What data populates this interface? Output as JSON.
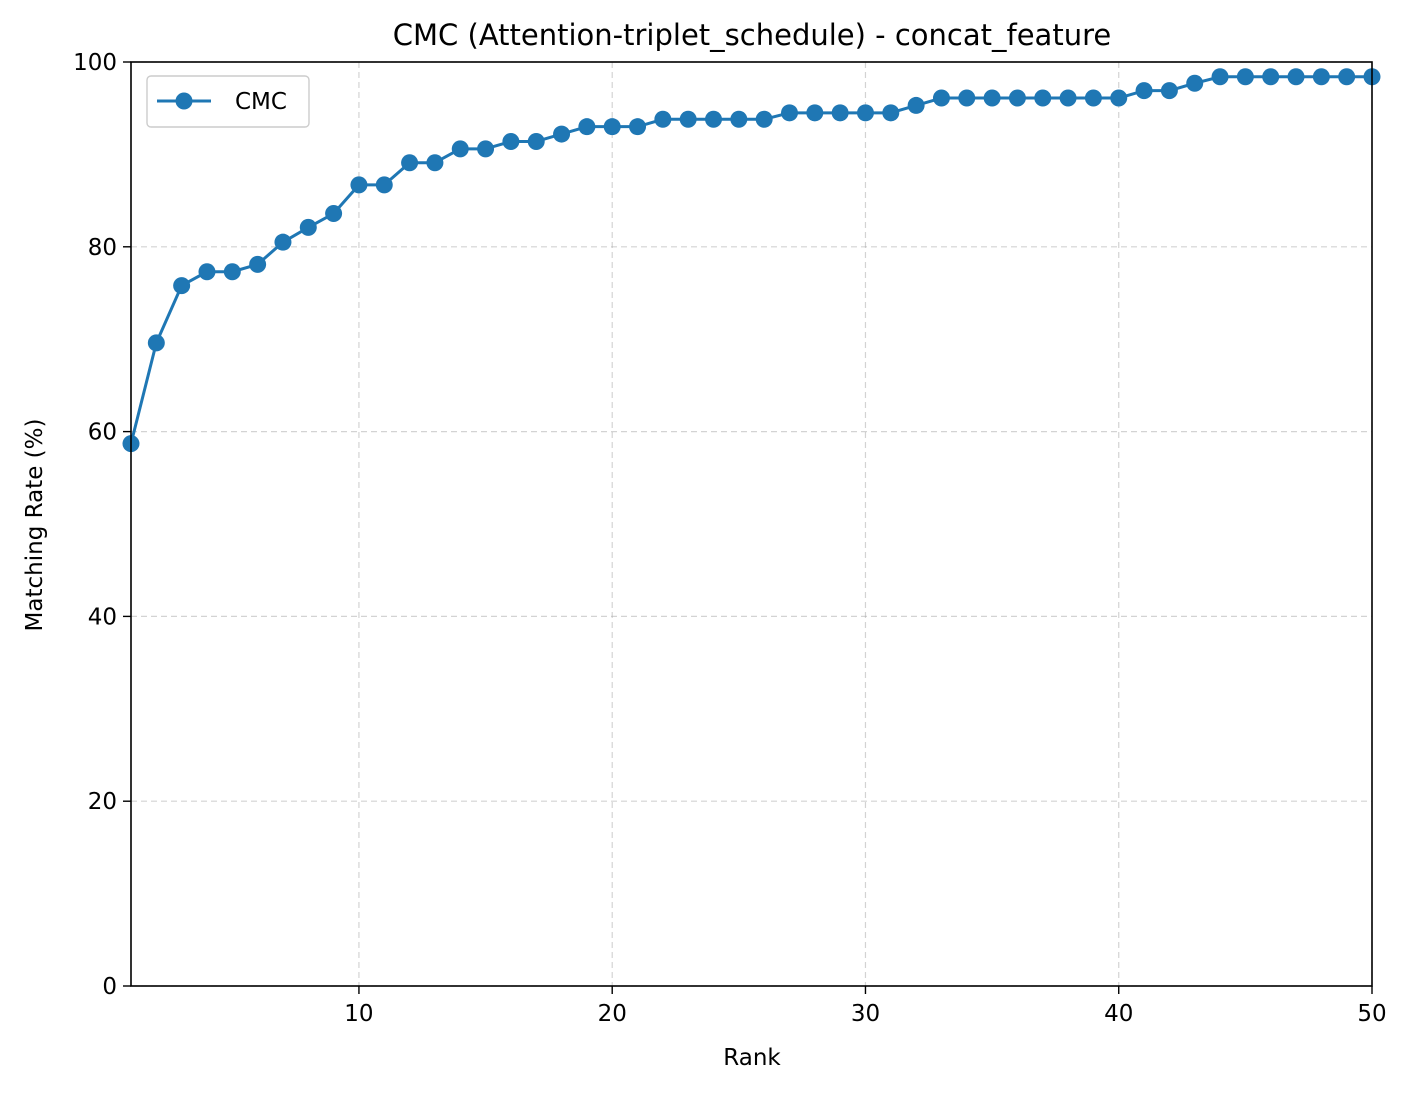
{
  "chart_data": {
    "type": "line",
    "title": "CMC (Attention-triplet_schedule) - concat_feature",
    "xlabel": "Rank",
    "ylabel": "Matching Rate (%)",
    "xlim": [
      1,
      50
    ],
    "ylim": [
      0,
      100
    ],
    "xticks": [
      10,
      20,
      30,
      40,
      50
    ],
    "yticks": [
      0,
      20,
      40,
      60,
      80,
      100
    ],
    "grid": true,
    "legend_position": "upper-left",
    "series": [
      {
        "name": "CMC",
        "color": "#1f77b4",
        "marker": "circle",
        "x": [
          1,
          2,
          3,
          4,
          5,
          6,
          7,
          8,
          9,
          10,
          11,
          12,
          13,
          14,
          15,
          16,
          17,
          18,
          19,
          20,
          21,
          22,
          23,
          24,
          25,
          26,
          27,
          28,
          29,
          30,
          31,
          32,
          33,
          34,
          35,
          36,
          37,
          38,
          39,
          40,
          41,
          42,
          43,
          44,
          45,
          46,
          47,
          48,
          49,
          50
        ],
        "values": [
          58.7,
          69.6,
          75.8,
          77.3,
          77.3,
          78.1,
          80.5,
          82.1,
          83.6,
          86.7,
          86.7,
          89.1,
          89.1,
          90.6,
          90.6,
          91.4,
          91.4,
          92.2,
          93.0,
          93.0,
          93.0,
          93.8,
          93.8,
          93.8,
          93.8,
          93.8,
          94.5,
          94.5,
          94.5,
          94.5,
          94.5,
          95.3,
          96.1,
          96.1,
          96.1,
          96.1,
          96.1,
          96.1,
          96.1,
          96.1,
          96.9,
          96.9,
          97.7,
          98.4,
          98.4,
          98.4,
          98.4,
          98.4,
          98.4,
          98.4
        ]
      }
    ]
  }
}
